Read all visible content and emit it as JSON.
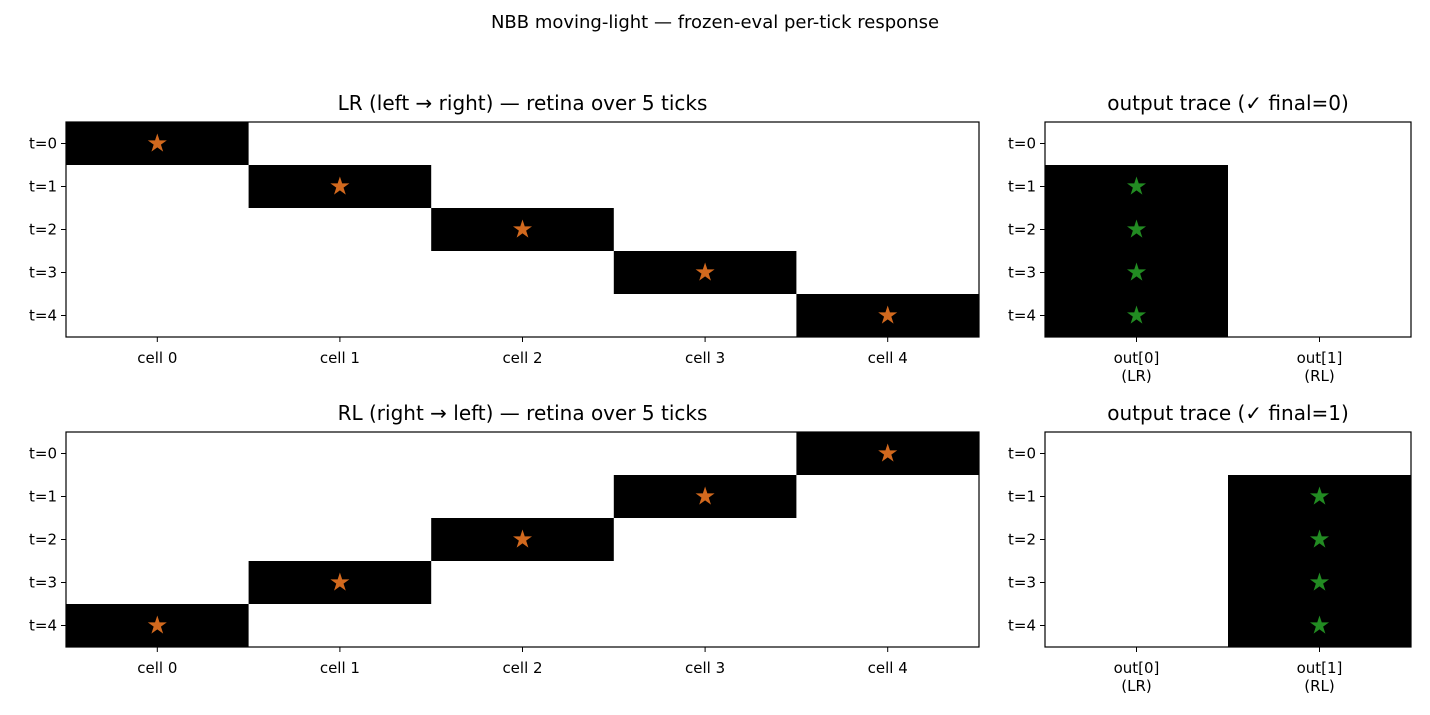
{
  "figure": {
    "suptitle": "NBB moving-light — frozen-eval per-tick response"
  },
  "colors": {
    "cell_on": "#000000",
    "cell_off": "#ffffff",
    "retina_marker": "#d2691e",
    "output_marker": "#228b22",
    "frame": "#000000"
  },
  "chart_data": [
    {
      "type": "heatmap",
      "title": "LR (left → right) — retina over 5 ticks",
      "x_categories": [
        "cell 0",
        "cell 1",
        "cell 2",
        "cell 3",
        "cell 4"
      ],
      "y_categories": [
        "t=0",
        "t=1",
        "t=2",
        "t=3",
        "t=4"
      ],
      "values": [
        [
          1,
          0,
          0,
          0,
          0
        ],
        [
          0,
          1,
          0,
          0,
          0
        ],
        [
          0,
          0,
          1,
          0,
          0
        ],
        [
          0,
          0,
          0,
          1,
          0
        ],
        [
          0,
          0,
          0,
          0,
          1
        ]
      ],
      "markers": [
        [
          0,
          0
        ],
        [
          1,
          1
        ],
        [
          2,
          2
        ],
        [
          3,
          3
        ],
        [
          4,
          4
        ]
      ],
      "marker": "star",
      "marker_color": "#d2691e",
      "grid": false
    },
    {
      "type": "heatmap",
      "title": "output trace  (✓ final=0)",
      "x_categories": [
        "out[0]\n(LR)",
        "out[1]\n(RL)"
      ],
      "y_categories": [
        "t=0",
        "t=1",
        "t=2",
        "t=3",
        "t=4"
      ],
      "values": [
        [
          0,
          0
        ],
        [
          1,
          0
        ],
        [
          1,
          0
        ],
        [
          1,
          0
        ],
        [
          1,
          0
        ]
      ],
      "markers": [
        [
          0,
          1
        ],
        [
          0,
          2
        ],
        [
          0,
          3
        ],
        [
          0,
          4
        ]
      ],
      "marker": "star",
      "marker_color": "#228b22",
      "grid": false
    },
    {
      "type": "heatmap",
      "title": "RL (right → left) — retina over 5 ticks",
      "x_categories": [
        "cell 0",
        "cell 1",
        "cell 2",
        "cell 3",
        "cell 4"
      ],
      "y_categories": [
        "t=0",
        "t=1",
        "t=2",
        "t=3",
        "t=4"
      ],
      "values": [
        [
          0,
          0,
          0,
          0,
          1
        ],
        [
          0,
          0,
          0,
          1,
          0
        ],
        [
          0,
          0,
          1,
          0,
          0
        ],
        [
          0,
          1,
          0,
          0,
          0
        ],
        [
          1,
          0,
          0,
          0,
          0
        ]
      ],
      "markers": [
        [
          4,
          0
        ],
        [
          3,
          1
        ],
        [
          2,
          2
        ],
        [
          1,
          3
        ],
        [
          0,
          4
        ]
      ],
      "marker": "star",
      "marker_color": "#d2691e",
      "grid": false
    },
    {
      "type": "heatmap",
      "title": "output trace  (✓ final=1)",
      "x_categories": [
        "out[0]\n(LR)",
        "out[1]\n(RL)"
      ],
      "y_categories": [
        "t=0",
        "t=1",
        "t=2",
        "t=3",
        "t=4"
      ],
      "values": [
        [
          0,
          0
        ],
        [
          0,
          1
        ],
        [
          0,
          1
        ],
        [
          0,
          1
        ],
        [
          0,
          1
        ]
      ],
      "markers": [
        [
          1,
          1
        ],
        [
          1,
          2
        ],
        [
          1,
          3
        ],
        [
          1,
          4
        ]
      ],
      "marker": "star",
      "marker_color": "#228b22",
      "grid": false
    }
  ]
}
